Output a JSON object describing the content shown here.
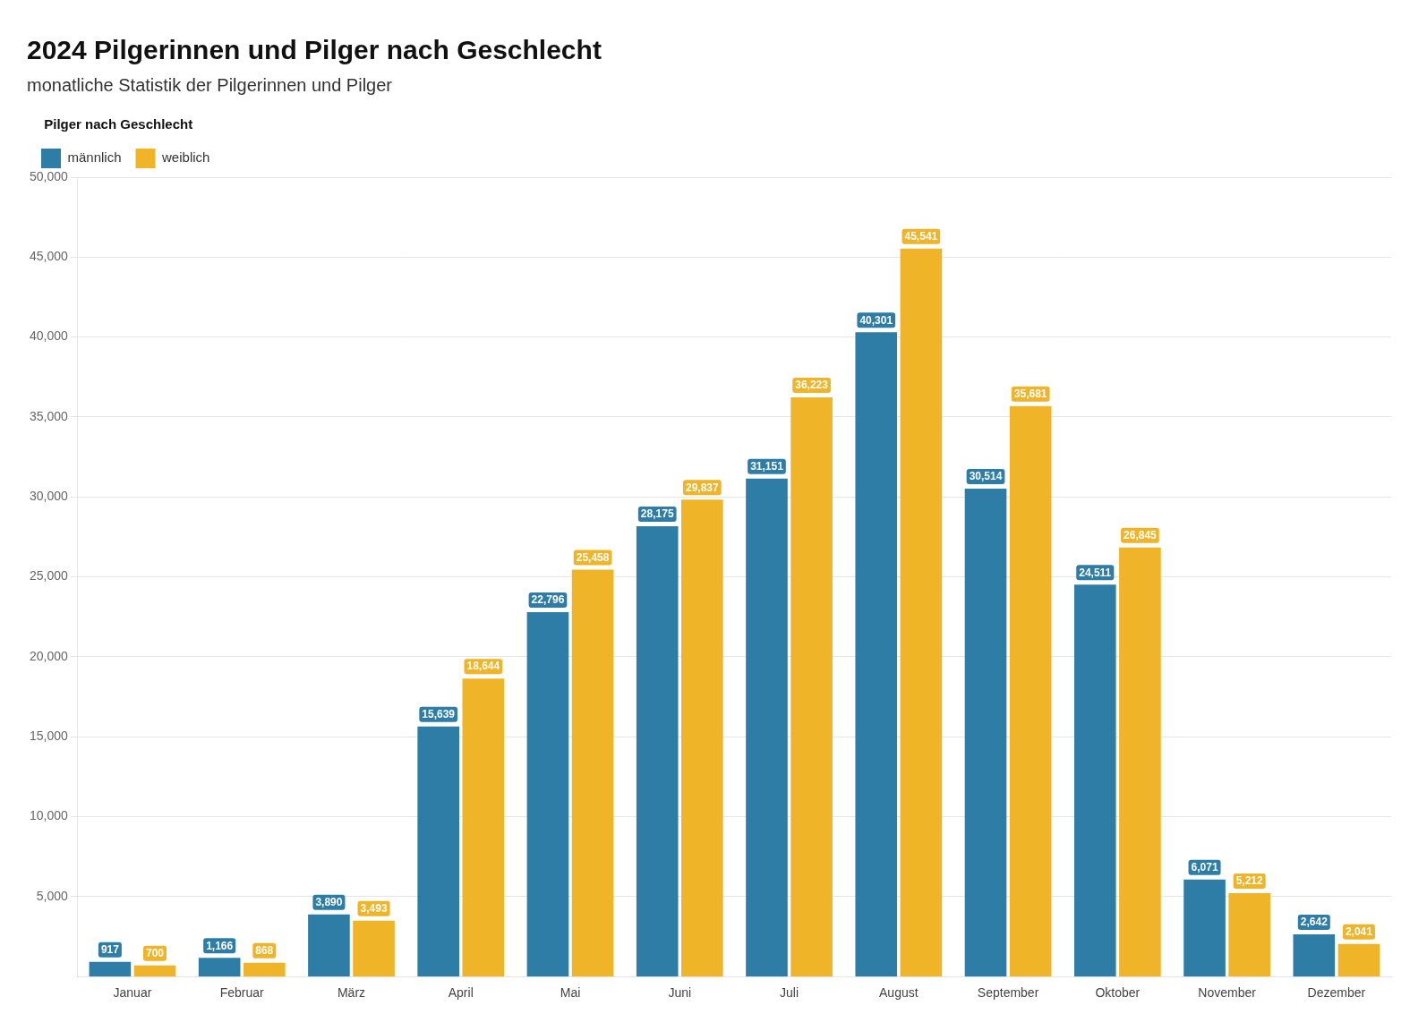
{
  "chart_data": {
    "type": "bar",
    "title": "2024 Pilgerinnen und Pilger nach Geschlecht",
    "subtitle": "monatliche Statistik der Pilgerinnen und Pilger",
    "legend_title": "Pilger nach Geschlecht",
    "categories": [
      "Januar",
      "Februar",
      "März",
      "April",
      "Mai",
      "Juni",
      "Juli",
      "August",
      "September",
      "Oktober",
      "November",
      "Dezember"
    ],
    "series": [
      {
        "name": "männlich",
        "color": "#2e7da6",
        "values": [
          917,
          1166,
          3890,
          15639,
          22796,
          28175,
          31151,
          40301,
          30514,
          24511,
          6071,
          2642
        ],
        "value_labels": [
          "917",
          "1,166",
          "3,890",
          "15,639",
          "22,796",
          "28,175",
          "31,151",
          "40,301",
          "30,514",
          "24,511",
          "6,071",
          "2,642"
        ]
      },
      {
        "name": "weiblich",
        "color": "#f0b428",
        "values": [
          700,
          868,
          3493,
          18644,
          25458,
          29837,
          36223,
          45541,
          35681,
          26845,
          5212,
          2041
        ],
        "value_labels": [
          "700",
          "868",
          "3,493",
          "18,644",
          "25,458",
          "29,837",
          "36,223",
          "45,541",
          "35,681",
          "26,845",
          "5,212",
          "2,041"
        ]
      }
    ],
    "ylim": [
      0,
      50000
    ],
    "yticks": [
      {
        "value": 5000,
        "label": "5,000"
      },
      {
        "value": 10000,
        "label": "10,000"
      },
      {
        "value": 15000,
        "label": "15,000"
      },
      {
        "value": 20000,
        "label": "20,000"
      },
      {
        "value": 25000,
        "label": "25,000"
      },
      {
        "value": 30000,
        "label": "30,000"
      },
      {
        "value": 35000,
        "label": "35,000"
      },
      {
        "value": 40000,
        "label": "40,000"
      },
      {
        "value": 45000,
        "label": "45,000"
      },
      {
        "value": 50000,
        "label": "50,000"
      }
    ],
    "grid": true,
    "legend": "top",
    "data_labels": true
  }
}
